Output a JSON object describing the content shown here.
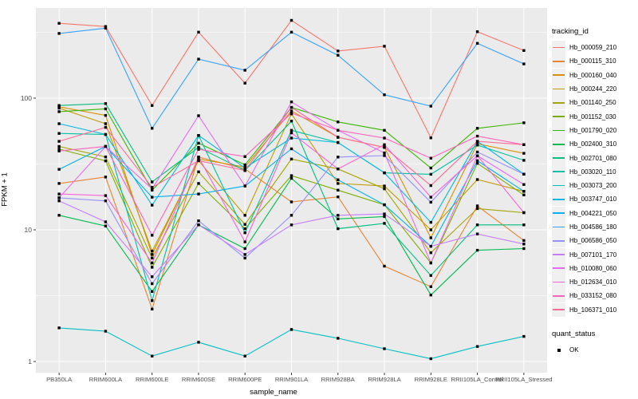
{
  "chart_data": {
    "type": "line",
    "xlabel": "sample_name",
    "ylabel": "FPKM + 1",
    "y_scale": "log10",
    "y_ticks": [
      1,
      10,
      100
    ],
    "y_minor": [
      3.162,
      31.62,
      316.2
    ],
    "panel_bg": "#ebebeb",
    "grid_color": "#ffffff",
    "point_color": "#000000",
    "legend_title": "tracking_id",
    "quant_title": "quant_status",
    "quant_items": [
      {
        "label": "OK",
        "marker": "black-square"
      }
    ],
    "categories": [
      "PB350LA",
      "RRIM600LA",
      "RRIM600LE",
      "RRIM600SE",
      "RRIM600PE",
      "RRIM901LA",
      "RRIM928BA",
      "RRIM928LA",
      "RRIM928LE",
      "RRII105LA_Control",
      "RRII105LA_Stressed"
    ],
    "series": [
      {
        "name": "Hb_000059_210",
        "color": "#F8766D",
        "values": [
          370,
          350,
          88,
          317,
          130,
          390,
          228,
          248,
          50,
          320,
          230
        ]
      },
      {
        "name": "Hb_000115_310",
        "color": "#EA8331",
        "values": [
          22.5,
          25.2,
          2.5,
          35.7,
          29,
          16.3,
          17.8,
          5.3,
          3.7,
          15.2,
          8.3
        ]
      },
      {
        "name": "Hb_000160_040",
        "color": "#D89000",
        "values": [
          86,
          74,
          6.5,
          34.5,
          30,
          80,
          50.5,
          42.3,
          8.7,
          45,
          38.1
        ]
      },
      {
        "name": "Hb_000244_220",
        "color": "#C09B00",
        "values": [
          84,
          64,
          6.9,
          33.5,
          12.9,
          76,
          22.5,
          21.5,
          10,
          24.1,
          19.6
        ]
      },
      {
        "name": "Hb_001140_250",
        "color": "#A3A500",
        "values": [
          43,
          35.8,
          6.1,
          27.6,
          11,
          34.5,
          29,
          20.5,
          6.7,
          14.5,
          13.5
        ]
      },
      {
        "name": "Hb_001152_030",
        "color": "#7CAE00",
        "values": [
          41,
          33.4,
          5.2,
          22.5,
          10.2,
          25.8,
          20,
          15.5,
          5.6,
          32,
          18.4
        ]
      },
      {
        "name": "Hb_001790_020",
        "color": "#39B600",
        "values": [
          79,
          83,
          20,
          45.5,
          31.2,
          85,
          66,
          57,
          29.5,
          59,
          65
        ]
      },
      {
        "name": "Hb_002400_310",
        "color": "#00BB4E",
        "values": [
          12.9,
          10.7,
          3.4,
          10.9,
          7.2,
          24.6,
          12.1,
          12.6,
          3.2,
          7.0,
          7.2
        ]
      },
      {
        "name": "Hb_002701_080",
        "color": "#00BF7D",
        "values": [
          88,
          91,
          23.1,
          42.3,
          28.2,
          67,
          10.2,
          11.2,
          4.5,
          10.9,
          10.9
        ]
      },
      {
        "name": "Hb_003020_110",
        "color": "#00C1A3",
        "values": [
          54,
          53,
          2.9,
          52.1,
          9.5,
          57,
          46,
          27.1,
          26.4,
          44,
          33.7
        ]
      },
      {
        "name": "Hb_003073_200",
        "color": "#00BFC4",
        "values": [
          1.8,
          1.7,
          1.1,
          1.4,
          1.1,
          1.75,
          1.5,
          1.25,
          1.05,
          1.3,
          1.55
        ]
      },
      {
        "name": "Hb_003747_010",
        "color": "#00BAE0",
        "values": [
          64,
          53,
          15.4,
          52.1,
          29.5,
          49.8,
          46,
          27.1,
          11.4,
          47,
          26.5
        ]
      },
      {
        "name": "Hb_004221_050",
        "color": "#00B0F6",
        "values": [
          28.8,
          43,
          17.7,
          18.7,
          21.5,
          41.2,
          24,
          15.5,
          7.5,
          33.5,
          19.6
        ]
      },
      {
        "name": "Hb_004586_180",
        "color": "#35A2FF",
        "values": [
          310,
          340,
          59,
          198,
          163,
          317,
          212,
          106,
          87,
          261,
          182
        ]
      },
      {
        "name": "Hb_006586_050",
        "color": "#9590FF",
        "values": [
          17.5,
          16.6,
          3.9,
          11.7,
          6.1,
          12.9,
          35.7,
          36.6,
          16.2,
          39,
          26.5
        ]
      },
      {
        "name": "Hb_007101_170",
        "color": "#C77CFF",
        "values": [
          16.6,
          11.5,
          4.4,
          10.9,
          6.5,
          10.9,
          12.9,
          13.2,
          7.5,
          9.3,
          7.8
        ]
      },
      {
        "name": "Hb_010080_060",
        "color": "#E76BF3",
        "values": [
          17.5,
          43,
          20.5,
          73.6,
          21.5,
          93.6,
          57,
          38.4,
          5.6,
          36.5,
          22.1
        ]
      },
      {
        "name": "Hb_012634_010",
        "color": "#FA62DB",
        "values": [
          18.7,
          18.2,
          5.6,
          35.7,
          8.1,
          54.5,
          29,
          44.3,
          17.7,
          36.5,
          13.5
        ]
      },
      {
        "name": "Hb_033152_080",
        "color": "#FF62BC",
        "values": [
          39.7,
          43,
          9.1,
          40.9,
          36,
          77,
          57,
          49.8,
          35,
          51.5,
          44.3
        ]
      },
      {
        "name": "Hb_106371_010",
        "color": "#FF6A98",
        "values": [
          47,
          60,
          21,
          33.5,
          28.2,
          85,
          50.5,
          42.3,
          21.7,
          47,
          44.3
        ]
      }
    ]
  }
}
